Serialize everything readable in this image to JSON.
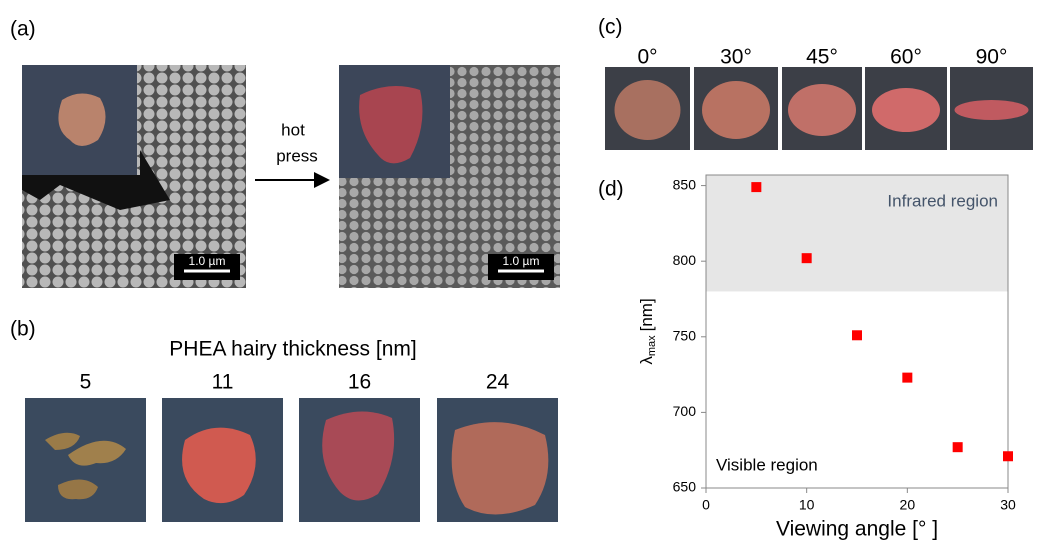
{
  "panels": {
    "a": {
      "label": "(a)",
      "arrow_text": [
        "hot",
        "press"
      ],
      "scale_bars": [
        "1.0 µm",
        "1.0 µm"
      ]
    },
    "b": {
      "label": "(b)",
      "title": "PHEA hairy thickness [nm]",
      "thicknesses": [
        5,
        11,
        16,
        24
      ]
    },
    "c": {
      "label": "(c)",
      "angles": [
        "0°",
        "30°",
        "45°",
        "60°",
        "90°"
      ]
    },
    "d": {
      "label": "(d)"
    }
  },
  "chart_data": {
    "type": "scatter",
    "x": [
      5,
      10,
      15,
      20,
      25,
      30
    ],
    "values": [
      849,
      802,
      751,
      723,
      677,
      671
    ],
    "color": "#ff0000",
    "xlim": [
      0,
      30
    ],
    "xticks": [
      0,
      10,
      20,
      30
    ],
    "ylim": [
      650,
      857
    ],
    "yticks": [
      650,
      700,
      750,
      800,
      850
    ],
    "shaded_range": [
      780,
      857
    ],
    "shade_color": "#e6e6e6",
    "xlabel": "Viewing angle [° ]",
    "ylabel": {
      "symbol": "λ",
      "subscript": "max",
      "unit": "[nm]"
    },
    "annotations": [
      "Infrared region",
      "Visible region"
    ]
  }
}
